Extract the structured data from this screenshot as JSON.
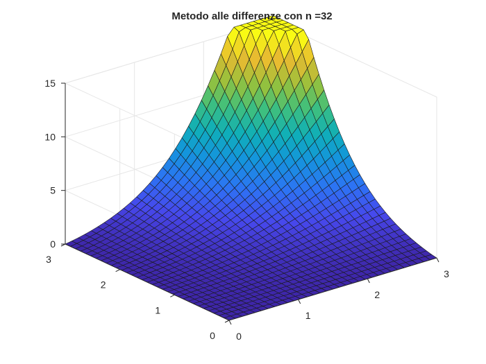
{
  "chart_data": {
    "type": "surface",
    "title": "Metodo alle differenze con n =32",
    "xlabel": "",
    "ylabel": "",
    "zlabel": "",
    "x_range": [
      0,
      3
    ],
    "y_range": [
      0,
      3
    ],
    "z_range": [
      0,
      15
    ],
    "x_ticks": [
      0,
      1,
      2,
      3
    ],
    "y_ticks": [
      0,
      1,
      2,
      3
    ],
    "z_ticks": [
      0,
      5,
      10,
      15
    ],
    "grid": true,
    "colormap": "parula",
    "surface_samples": {
      "description_free_values": true,
      "z_at_x3_y3": 15.5,
      "z_at_x3_y0": 0,
      "z_at_x0_y3": 0,
      "z_at_x0_y0": 0,
      "z_mid_x1.5_y1.5": 2.4,
      "z_at_x3_y1.5": 8.2,
      "z_at_x1.5_y3": 2.9
    }
  }
}
